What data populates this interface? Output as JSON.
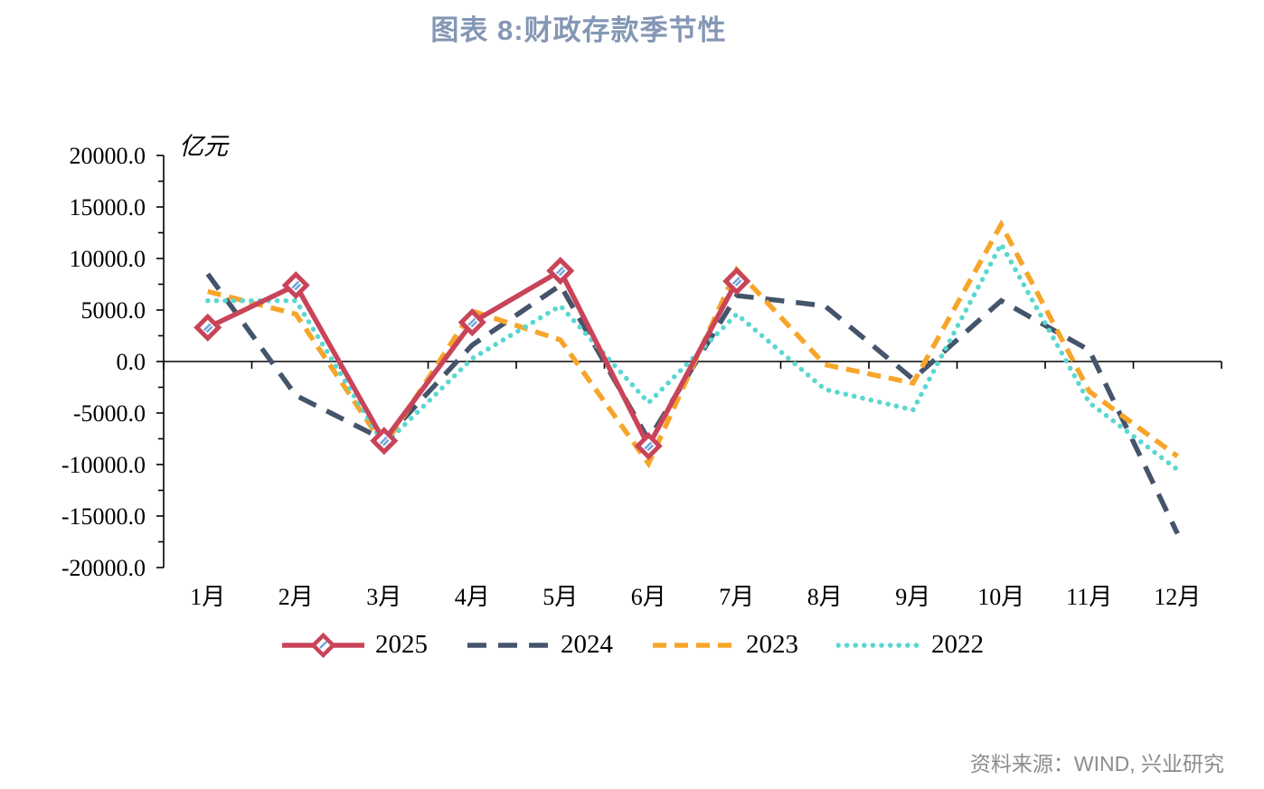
{
  "title": "图表 8:财政存款季节性",
  "source": "资料来源：WIND, 兴业研究",
  "colors": {
    "title": "#8497B4",
    "source": "#8C8C8C",
    "axis": "#000000",
    "series_2025": "#C94459",
    "series_2024": "#44546A",
    "series_2023": "#F7A52A",
    "series_2022": "#5AD7D0",
    "marker_stripe": "#6FA3DC"
  },
  "chart_data": {
    "type": "line",
    "title": "图表 8:财政存款季节性",
    "unit_label": "亿元",
    "xlabel": "",
    "ylabel": "亿元",
    "grid": false,
    "legend_position": "bottom",
    "categories": [
      "1月",
      "2月",
      "3月",
      "4月",
      "5月",
      "6月",
      "7月",
      "8月",
      "9月",
      "10月",
      "11月",
      "12月"
    ],
    "y_axis": {
      "min": -20000,
      "max": 20000,
      "major_step": 5000,
      "minor_step": 2500,
      "decimals": 1
    },
    "series": [
      {
        "name": "2025",
        "color": "#C94459",
        "line_style": "solid",
        "marker": "diamond",
        "values": [
          3300,
          7400,
          -7700,
          3800,
          8800,
          -8200,
          7800
        ]
      },
      {
        "name": "2024",
        "color": "#44546A",
        "line_style": "long-dash",
        "marker": "none",
        "values": [
          8500,
          -3300,
          -7600,
          1600,
          7400,
          -7600,
          6400,
          5400,
          -1700,
          5900,
          1100,
          -16700
        ]
      },
      {
        "name": "2023",
        "color": "#F7A52A",
        "line_style": "dash",
        "marker": "none",
        "values": [
          6800,
          4600,
          -8200,
          4900,
          2100,
          -9900,
          8900,
          -300,
          -2100,
          13300,
          -2900,
          -9200
        ]
      },
      {
        "name": "2022",
        "color": "#5AD7D0",
        "line_style": "dot",
        "marker": "none",
        "values": [
          5900,
          5900,
          -8100,
          300,
          5400,
          -4000,
          4600,
          -2700,
          -4700,
          11400,
          -4000,
          -10500
        ]
      }
    ]
  }
}
